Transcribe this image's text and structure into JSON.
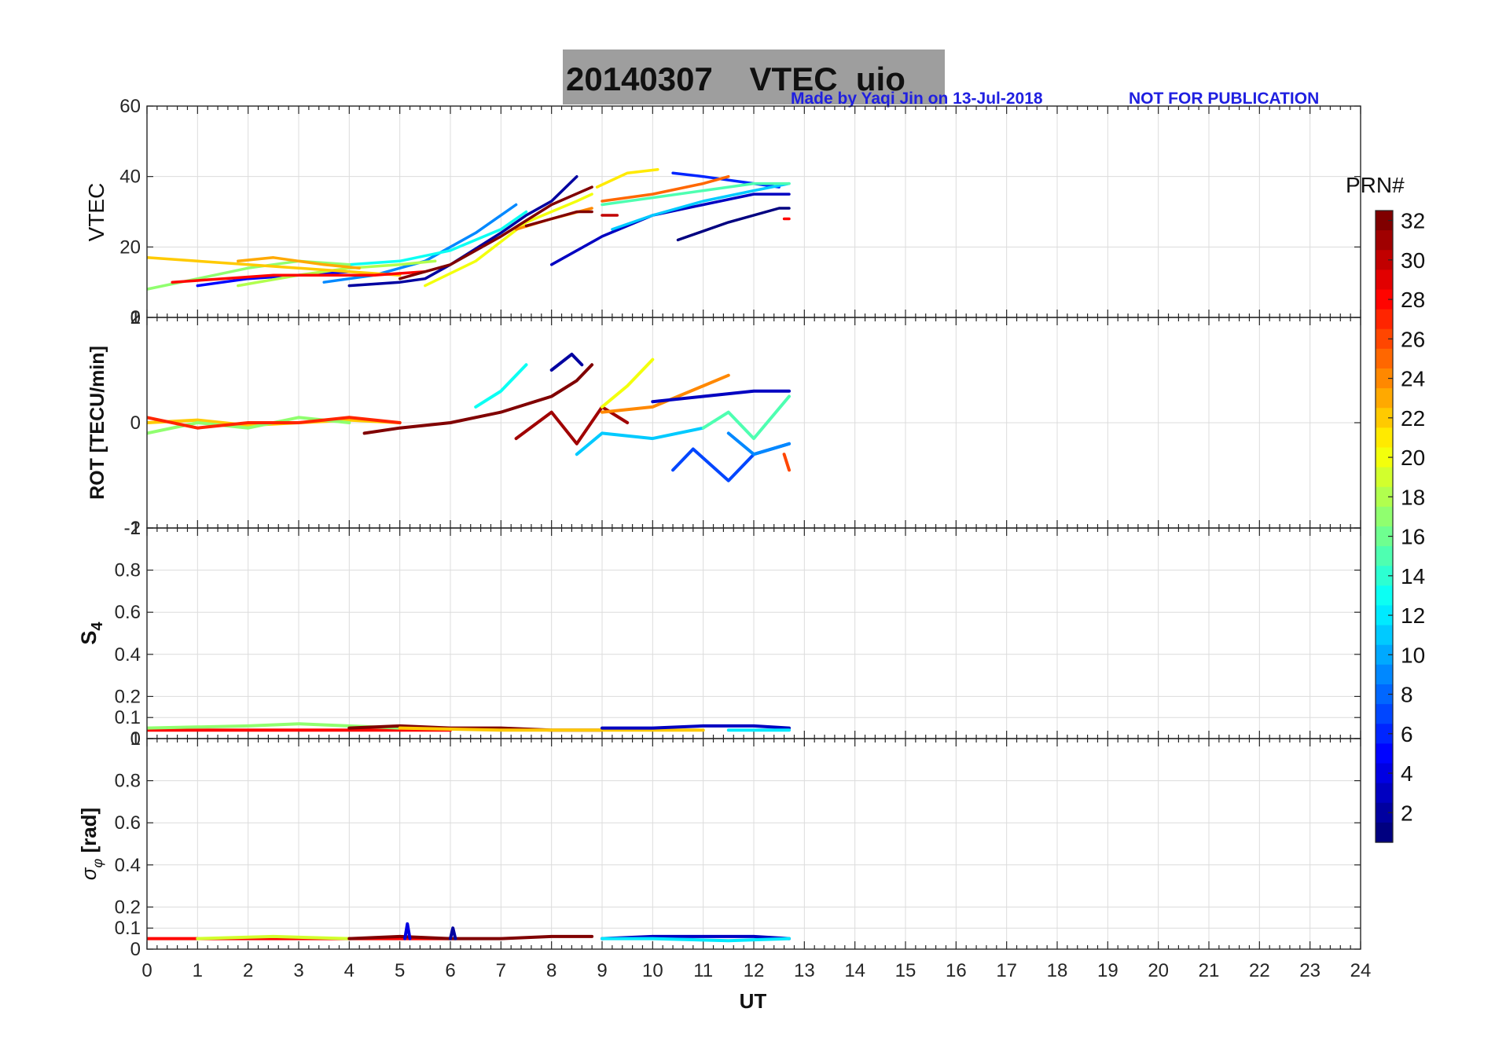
{
  "header": {
    "title": "20140307    VTEC  uio",
    "credit": "Made by Yaqi Jin on 13-Jul-2018",
    "notice": "NOT FOR PUBLICATION",
    "title_bg": "#9e9e9e",
    "credit_color": "#1f1fe0"
  },
  "colorbar": {
    "label": "PRN#",
    "min": 1,
    "max": 32,
    "ticks": [
      "2",
      "4",
      "6",
      "8",
      "10",
      "12",
      "14",
      "16",
      "18",
      "20",
      "22",
      "24",
      "26",
      "28",
      "30",
      "32"
    ]
  },
  "xaxis": {
    "label": "UT",
    "min": 0,
    "max": 24,
    "ticks": [
      "0",
      "1",
      "2",
      "3",
      "4",
      "5",
      "6",
      "7",
      "8",
      "9",
      "10",
      "11",
      "12",
      "13",
      "14",
      "15",
      "16",
      "17",
      "18",
      "19",
      "20",
      "21",
      "22",
      "23",
      "24"
    ]
  },
  "chart_data": [
    {
      "type": "line",
      "id": "vtec",
      "ylabel": "VTEC",
      "ylim": [
        0,
        60
      ],
      "yticks": [
        "20",
        "40",
        "60"
      ],
      "bottom_tick": "0",
      "grid": true,
      "series": [
        {
          "name": "PRN 1",
          "prn": 1,
          "x": [
            10.5,
            11.5,
            12.5,
            12.7
          ],
          "y": [
            22,
            27,
            31,
            31
          ]
        },
        {
          "name": "PRN 2",
          "prn": 2,
          "x": [
            4.0,
            5.0,
            5.5,
            6.0,
            7.0,
            7.5,
            8.0,
            8.5
          ],
          "y": [
            9,
            10,
            11,
            15,
            24,
            29,
            33,
            40
          ]
        },
        {
          "name": "PRN 3",
          "prn": 3,
          "x": [
            8.0,
            9.0,
            10.0,
            11.0,
            12.0,
            12.7
          ],
          "y": [
            15,
            23,
            29,
            32,
            35,
            35
          ]
        },
        {
          "name": "PRN 5",
          "prn": 5,
          "x": [
            1.0,
            2.0,
            3.0,
            4.0
          ],
          "y": [
            9,
            11,
            12,
            13
          ]
        },
        {
          "name": "PRN 6",
          "prn": 6,
          "x": [
            10.4,
            11.0,
            11.5,
            12.0,
            12.5
          ],
          "y": [
            41,
            40,
            39,
            38,
            37
          ]
        },
        {
          "name": "PRN 9",
          "prn": 9,
          "x": [
            3.5,
            4.5,
            5.5,
            6.5,
            7.3
          ],
          "y": [
            10,
            12,
            16,
            24,
            32
          ]
        },
        {
          "name": "PRN 11",
          "prn": 11,
          "x": [
            9.2,
            10.0,
            11.0,
            12.0,
            12.7
          ],
          "y": [
            25,
            29,
            33,
            36,
            38
          ]
        },
        {
          "name": "PRN 13",
          "prn": 13,
          "x": [
            4.0,
            5.0,
            6.0,
            7.0,
            7.5
          ],
          "y": [
            15,
            16,
            19,
            25,
            30
          ]
        },
        {
          "name": "PRN 15",
          "prn": 15,
          "x": [
            9.0,
            10.0,
            11.0,
            12.0,
            12.7
          ],
          "y": [
            32,
            34,
            36,
            38,
            38
          ]
        },
        {
          "name": "PRN 17",
          "prn": 17,
          "x": [
            0.0,
            1.0,
            2.0,
            3.0,
            4.0
          ],
          "y": [
            8,
            11,
            14,
            16,
            15
          ]
        },
        {
          "name": "PRN 18",
          "prn": 18,
          "x": [
            1.8,
            3.0,
            4.0,
            5.0,
            5.7
          ],
          "y": [
            9,
            12,
            14,
            15,
            16
          ]
        },
        {
          "name": "PRN 20",
          "prn": 20,
          "x": [
            5.5,
            6.5,
            7.5,
            8.5,
            8.8
          ],
          "y": [
            9,
            16,
            27,
            33,
            35
          ]
        },
        {
          "name": "PRN 21",
          "prn": 21,
          "x": [
            8.9,
            9.5,
            10.1
          ],
          "y": [
            37,
            41,
            42
          ]
        },
        {
          "name": "PRN 22",
          "prn": 22,
          "x": [
            0.0,
            1.0,
            2.0,
            3.0,
            4.0,
            5.0
          ],
          "y": [
            17,
            16,
            15,
            14,
            13,
            12
          ]
        },
        {
          "name": "PRN 23",
          "prn": 23,
          "x": [
            1.8,
            2.5,
            3.0,
            3.5,
            4.2
          ],
          "y": [
            16,
            17,
            16,
            15,
            14
          ]
        },
        {
          "name": "PRN 24",
          "prn": 24,
          "x": [
            7.3,
            8.0,
            8.8
          ],
          "y": [
            25,
            28,
            31
          ]
        },
        {
          "name": "PRN 25",
          "prn": 25,
          "x": [
            9.0,
            10.0,
            11.0,
            11.5
          ],
          "y": [
            33,
            35,
            38,
            40
          ]
        },
        {
          "name": "PRN 28",
          "prn": 28,
          "x": [
            0.5,
            1.5,
            2.5,
            3.5,
            4.5,
            5.5
          ],
          "y": [
            10,
            11,
            12,
            12,
            12,
            13
          ]
        },
        {
          "name": "PRN 28b",
          "prn": 28,
          "x": [
            12.6,
            12.7
          ],
          "y": [
            28,
            28
          ]
        },
        {
          "name": "PRN 30",
          "prn": 30,
          "x": [
            9.0,
            9.3
          ],
          "y": [
            29,
            29
          ]
        },
        {
          "name": "PRN 32",
          "prn": 32,
          "x": [
            5.0,
            6.0,
            7.0,
            8.0,
            8.8
          ],
          "y": [
            11,
            15,
            23,
            32,
            37
          ]
        },
        {
          "name": "PRN 32b",
          "prn": 32,
          "x": [
            7.5,
            8.0,
            8.5,
            8.8
          ],
          "y": [
            26,
            28,
            30,
            30
          ]
        }
      ]
    },
    {
      "type": "line",
      "id": "rot",
      "ylabel": "ROT [TECU/min]",
      "ylim": [
        -2,
        2
      ],
      "yticks": [
        "-2",
        "0",
        "2"
      ],
      "bottom_tick": "-1",
      "top_tick_overlap": "1",
      "grid": true,
      "series": [
        {
          "name": "PRN 22",
          "prn": 22,
          "x": [
            0.0,
            1.0,
            2.0,
            3.0,
            4.0,
            5.0
          ],
          "y": [
            0.0,
            0.05,
            -0.05,
            0.0,
            0.05,
            0.0
          ]
        },
        {
          "name": "PRN 17",
          "prn": 17,
          "x": [
            0.0,
            1.0,
            2.0,
            3.0,
            4.0
          ],
          "y": [
            -0.2,
            0.0,
            -0.1,
            0.1,
            0.0
          ]
        },
        {
          "name": "PRN 27",
          "prn": 27,
          "x": [
            0.0,
            1.0,
            2.0,
            3.0,
            4.0,
            5.0
          ],
          "y": [
            0.1,
            -0.1,
            0.0,
            0.0,
            0.1,
            0.0
          ]
        },
        {
          "name": "PRN 32",
          "prn": 32,
          "x": [
            4.3,
            5.0,
            6.0,
            7.0,
            8.0,
            8.5,
            8.8
          ],
          "y": [
            -0.2,
            -0.1,
            0.0,
            0.2,
            0.5,
            0.8,
            1.1
          ]
        },
        {
          "name": "PRN 31",
          "prn": 31,
          "x": [
            7.3,
            8.0,
            8.5,
            9.0,
            9.5
          ],
          "y": [
            -0.3,
            0.2,
            -0.4,
            0.3,
            0.0
          ]
        },
        {
          "name": "PRN 13",
          "prn": 13,
          "x": [
            6.5,
            7.0,
            7.5
          ],
          "y": [
            0.3,
            0.6,
            1.1
          ]
        },
        {
          "name": "PRN 2",
          "prn": 2,
          "x": [
            8.0,
            8.4,
            8.6
          ],
          "y": [
            1.0,
            1.3,
            1.1
          ]
        },
        {
          "name": "PRN 20",
          "prn": 20,
          "x": [
            9.0,
            9.5,
            10.0
          ],
          "y": [
            0.3,
            0.7,
            1.2
          ]
        },
        {
          "name": "PRN 11",
          "prn": 11,
          "x": [
            8.5,
            9.0,
            10.0,
            11.0
          ],
          "y": [
            -0.6,
            -0.2,
            -0.3,
            -0.1
          ]
        },
        {
          "name": "PRN 24",
          "prn": 24,
          "x": [
            9.0,
            10.0,
            11.0,
            11.5
          ],
          "y": [
            0.2,
            0.3,
            0.7,
            0.9
          ]
        },
        {
          "name": "PRN 3",
          "prn": 3,
          "x": [
            10.0,
            11.0,
            12.0,
            12.7
          ],
          "y": [
            0.4,
            0.5,
            0.6,
            0.6
          ]
        },
        {
          "name": "PRN 7",
          "prn": 7,
          "x": [
            10.4,
            10.8,
            11.5,
            12.0,
            12.7
          ],
          "y": [
            -0.9,
            -0.5,
            -1.1,
            -0.6,
            -0.4
          ]
        },
        {
          "name": "PRN 9",
          "prn": 9,
          "x": [
            11.5,
            12.0,
            12.7
          ],
          "y": [
            -0.2,
            -0.6,
            -0.4
          ]
        },
        {
          "name": "PRN 15",
          "prn": 15,
          "x": [
            11.0,
            11.5,
            12.0,
            12.7
          ],
          "y": [
            -0.1,
            0.2,
            -0.3,
            0.5
          ]
        },
        {
          "name": "PRN 26",
          "prn": 26,
          "x": [
            12.6,
            12.7
          ],
          "y": [
            -0.6,
            -0.9
          ]
        }
      ]
    },
    {
      "type": "line",
      "id": "s4",
      "ylabel": "S4",
      "ylim": [
        0,
        1
      ],
      "yticks": [
        "0",
        "0.1",
        "0.2",
        "0.4",
        "0.6",
        "0.8",
        "1"
      ],
      "bottom_tick": "0",
      "grid": true,
      "series": [
        {
          "name": "PRN 28",
          "prn": 28,
          "x": [
            0.0,
            2.0,
            4.0,
            6.0
          ],
          "y": [
            0.04,
            0.04,
            0.04,
            0.04
          ]
        },
        {
          "name": "PRN 17",
          "prn": 17,
          "x": [
            0.0,
            2.0,
            3.0,
            5.0
          ],
          "y": [
            0.05,
            0.06,
            0.07,
            0.05
          ]
        },
        {
          "name": "PRN 32",
          "prn": 32,
          "x": [
            4.0,
            5.0,
            6.0,
            7.0,
            8.0,
            9.0
          ],
          "y": [
            0.05,
            0.06,
            0.05,
            0.05,
            0.04,
            0.04
          ]
        },
        {
          "name": "PRN 22",
          "prn": 22,
          "x": [
            5.0,
            7.0,
            9.0,
            11.0
          ],
          "y": [
            0.05,
            0.04,
            0.04,
            0.04
          ]
        },
        {
          "name": "PRN 3",
          "prn": 3,
          "x": [
            9.0,
            10.0,
            11.0,
            12.0,
            12.7
          ],
          "y": [
            0.05,
            0.05,
            0.06,
            0.06,
            0.05
          ]
        },
        {
          "name": "PRN 12",
          "prn": 12,
          "x": [
            11.5,
            12.0,
            12.7
          ],
          "y": [
            0.04,
            0.04,
            0.04
          ]
        }
      ]
    },
    {
      "type": "line",
      "id": "sigma_phi",
      "ylabel": "σφ [rad]",
      "ylim": [
        0,
        1
      ],
      "yticks": [
        "0",
        "0.1",
        "0.2",
        "0.4",
        "0.6",
        "0.8",
        "1"
      ],
      "bottom_tick": "0",
      "grid": true,
      "series": [
        {
          "name": "PRN 28",
          "prn": 28,
          "x": [
            0.0,
            2.0,
            4.0,
            6.0
          ],
          "y": [
            0.05,
            0.05,
            0.05,
            0.05
          ]
        },
        {
          "name": "PRN 19",
          "prn": 19,
          "x": [
            1.0,
            2.5,
            4.0
          ],
          "y": [
            0.05,
            0.06,
            0.05
          ]
        },
        {
          "name": "PRN 32",
          "prn": 32,
          "x": [
            4.0,
            5.0,
            6.0,
            7.0,
            8.0,
            8.8
          ],
          "y": [
            0.05,
            0.06,
            0.05,
            0.05,
            0.06,
            0.06
          ]
        },
        {
          "name": "PRN 3",
          "prn": 3,
          "x": [
            9.0,
            10.0,
            11.0,
            12.0,
            12.7
          ],
          "y": [
            0.05,
            0.06,
            0.06,
            0.06,
            0.05
          ]
        },
        {
          "name": "PRN 12",
          "prn": 12,
          "x": [
            9.0,
            10.0,
            11.5,
            12.7
          ],
          "y": [
            0.05,
            0.05,
            0.04,
            0.05
          ]
        },
        {
          "name": "PRN 4",
          "prn": 4,
          "x": [
            5.1,
            5.15,
            5.2
          ],
          "y": [
            0.05,
            0.12,
            0.05
          ]
        },
        {
          "name": "PRN 2",
          "prn": 2,
          "x": [
            6.0,
            6.05,
            6.1
          ],
          "y": [
            0.05,
            0.1,
            0.05
          ]
        }
      ]
    }
  ]
}
